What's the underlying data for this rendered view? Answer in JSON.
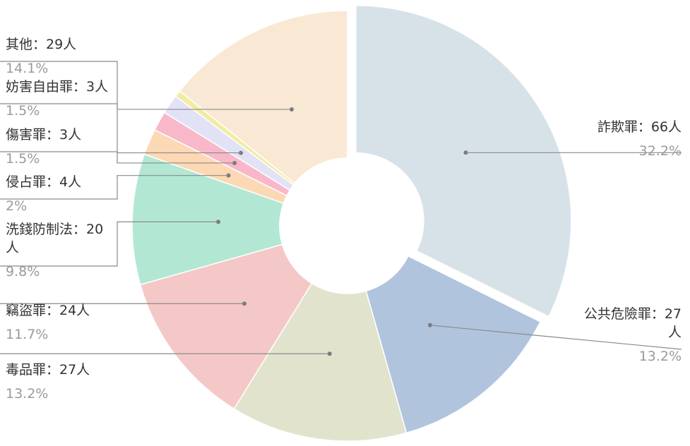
{
  "chart_data": {
    "type": "pie",
    "donut": true,
    "unit": "人",
    "slices": [
      {
        "category": "詐欺罪",
        "value": 66,
        "percent": "32.2%",
        "color": "#d7e2e8",
        "exploded": true,
        "label_lines": [
          "詐欺罪：66人"
        ]
      },
      {
        "category": "公共危險罪",
        "value": 27,
        "percent": "13.2%",
        "color": "#b1c4de",
        "label_lines": [
          "公共危險罪：27",
          "人"
        ]
      },
      {
        "category": "毒品罪",
        "value": 27,
        "percent": "13.2%",
        "color": "#e1e3cc",
        "label_lines": [
          "毒品罪：27人"
        ]
      },
      {
        "category": "竊盜罪",
        "value": 24,
        "percent": "11.7%",
        "color": "#f5c8c8",
        "label_lines": [
          "竊盜罪：24人"
        ]
      },
      {
        "category": "洗錢防制法",
        "value": 20,
        "percent": "9.8%",
        "color": "#b2e8d3",
        "label_lines": [
          "洗錢防制法：20",
          "人"
        ]
      },
      {
        "category": "侵占罪",
        "value": 4,
        "percent": "2%",
        "color": "#fdd8b5",
        "label_lines": [
          "侵占罪：4人"
        ]
      },
      {
        "category": "傷害罪",
        "value": 3,
        "percent": "1.5%",
        "color": "#f9b8c9",
        "label_lines": [
          "傷害罪：3人"
        ]
      },
      {
        "category": "妨害自由罪",
        "value": 3,
        "percent": "1.5%",
        "color": "#e2e2f7",
        "label_lines": [
          "妨害自由罪：3人"
        ]
      },
      {
        "category": "",
        "value": 1,
        "percent": "",
        "color": "#f2eca2",
        "label_lines": []
      },
      {
        "category": "其他",
        "value": 29,
        "percent": "14.1%",
        "color": "#f9e9d4",
        "label_lines": [
          "其他：29人"
        ]
      }
    ]
  }
}
